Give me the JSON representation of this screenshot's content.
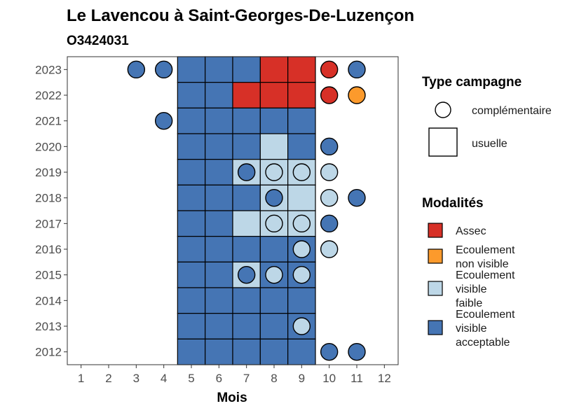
{
  "chart_data": {
    "type": "heatmap",
    "title": "Le Lavencou à Saint-Georges-De-Luzençon",
    "subtitle": "O3424031",
    "xlabel": "Mois",
    "ylabel": "",
    "x_ticks": [
      "1",
      "2",
      "3",
      "4",
      "5",
      "6",
      "7",
      "8",
      "9",
      "10",
      "11",
      "12"
    ],
    "y_ticks": [
      "2012",
      "2013",
      "2014",
      "2015",
      "2016",
      "2017",
      "2018",
      "2019",
      "2020",
      "2021",
      "2022",
      "2023"
    ],
    "xlim": [
      0.5,
      12.5
    ],
    "ylim": [
      2011.5,
      2023.5
    ],
    "grid": false,
    "legend_placement": "right",
    "legend_campaign": {
      "title": "Type campagne",
      "entries": [
        {
          "label": "complémentaire",
          "shape": "circle"
        },
        {
          "label": "usuelle",
          "shape": "square"
        }
      ]
    },
    "legend_modalities": {
      "title": "Modalités",
      "entries": [
        {
          "key": "assec",
          "lines": [
            "Assec"
          ],
          "color": "#d73027"
        },
        {
          "key": "nonvisible",
          "lines": [
            "Ecoulement",
            "non visible"
          ],
          "color": "#fc9a2c"
        },
        {
          "key": "faible",
          "lines": [
            "Ecoulement",
            "visible",
            "faible"
          ],
          "color": "#bdd7e7"
        },
        {
          "key": "acceptable",
          "lines": [
            "Ecoulement",
            "visible",
            "acceptable"
          ],
          "color": "#4575b4"
        }
      ]
    },
    "usuelle": [
      {
        "year": 2023,
        "month": 5,
        "value": "acceptable"
      },
      {
        "year": 2023,
        "month": 6,
        "value": "acceptable"
      },
      {
        "year": 2023,
        "month": 7,
        "value": "acceptable"
      },
      {
        "year": 2023,
        "month": 8,
        "value": "assec"
      },
      {
        "year": 2023,
        "month": 9,
        "value": "assec"
      },
      {
        "year": 2022,
        "month": 5,
        "value": "acceptable"
      },
      {
        "year": 2022,
        "month": 6,
        "value": "acceptable"
      },
      {
        "year": 2022,
        "month": 7,
        "value": "assec"
      },
      {
        "year": 2022,
        "month": 8,
        "value": "assec"
      },
      {
        "year": 2022,
        "month": 9,
        "value": "assec"
      },
      {
        "year": 2021,
        "month": 5,
        "value": "acceptable"
      },
      {
        "year": 2021,
        "month": 6,
        "value": "acceptable"
      },
      {
        "year": 2021,
        "month": 7,
        "value": "acceptable"
      },
      {
        "year": 2021,
        "month": 8,
        "value": "acceptable"
      },
      {
        "year": 2021,
        "month": 9,
        "value": "acceptable"
      },
      {
        "year": 2020,
        "month": 5,
        "value": "acceptable"
      },
      {
        "year": 2020,
        "month": 6,
        "value": "acceptable"
      },
      {
        "year": 2020,
        "month": 7,
        "value": "acceptable"
      },
      {
        "year": 2020,
        "month": 8,
        "value": "faible"
      },
      {
        "year": 2020,
        "month": 9,
        "value": "acceptable"
      },
      {
        "year": 2019,
        "month": 5,
        "value": "acceptable"
      },
      {
        "year": 2019,
        "month": 6,
        "value": "acceptable"
      },
      {
        "year": 2019,
        "month": 7,
        "value": "faible"
      },
      {
        "year": 2019,
        "month": 8,
        "value": "faible"
      },
      {
        "year": 2019,
        "month": 9,
        "value": "faible"
      },
      {
        "year": 2018,
        "month": 5,
        "value": "acceptable"
      },
      {
        "year": 2018,
        "month": 6,
        "value": "acceptable"
      },
      {
        "year": 2018,
        "month": 7,
        "value": "acceptable"
      },
      {
        "year": 2018,
        "month": 8,
        "value": "faible"
      },
      {
        "year": 2018,
        "month": 9,
        "value": "faible"
      },
      {
        "year": 2017,
        "month": 5,
        "value": "acceptable"
      },
      {
        "year": 2017,
        "month": 6,
        "value": "acceptable"
      },
      {
        "year": 2017,
        "month": 7,
        "value": "faible"
      },
      {
        "year": 2017,
        "month": 8,
        "value": "faible"
      },
      {
        "year": 2017,
        "month": 9,
        "value": "faible"
      },
      {
        "year": 2016,
        "month": 5,
        "value": "acceptable"
      },
      {
        "year": 2016,
        "month": 6,
        "value": "acceptable"
      },
      {
        "year": 2016,
        "month": 7,
        "value": "acceptable"
      },
      {
        "year": 2016,
        "month": 8,
        "value": "acceptable"
      },
      {
        "year": 2016,
        "month": 9,
        "value": "acceptable"
      },
      {
        "year": 2015,
        "month": 5,
        "value": "acceptable"
      },
      {
        "year": 2015,
        "month": 6,
        "value": "acceptable"
      },
      {
        "year": 2015,
        "month": 7,
        "value": "faible"
      },
      {
        "year": 2015,
        "month": 8,
        "value": "acceptable"
      },
      {
        "year": 2015,
        "month": 9,
        "value": "acceptable"
      },
      {
        "year": 2014,
        "month": 5,
        "value": "acceptable"
      },
      {
        "year": 2014,
        "month": 6,
        "value": "acceptable"
      },
      {
        "year": 2014,
        "month": 7,
        "value": "acceptable"
      },
      {
        "year": 2014,
        "month": 8,
        "value": "acceptable"
      },
      {
        "year": 2014,
        "month": 9,
        "value": "acceptable"
      },
      {
        "year": 2013,
        "month": 5,
        "value": "acceptable"
      },
      {
        "year": 2013,
        "month": 6,
        "value": "acceptable"
      },
      {
        "year": 2013,
        "month": 7,
        "value": "acceptable"
      },
      {
        "year": 2013,
        "month": 8,
        "value": "acceptable"
      },
      {
        "year": 2013,
        "month": 9,
        "value": "acceptable"
      },
      {
        "year": 2012,
        "month": 5,
        "value": "acceptable"
      },
      {
        "year": 2012,
        "month": 6,
        "value": "acceptable"
      },
      {
        "year": 2012,
        "month": 7,
        "value": "acceptable"
      },
      {
        "year": 2012,
        "month": 8,
        "value": "acceptable"
      },
      {
        "year": 2012,
        "month": 9,
        "value": "acceptable"
      }
    ],
    "complementaire": [
      {
        "year": 2023,
        "month": 3,
        "value": "acceptable"
      },
      {
        "year": 2023,
        "month": 4,
        "value": "acceptable"
      },
      {
        "year": 2023,
        "month": 10,
        "value": "assec"
      },
      {
        "year": 2023,
        "month": 11,
        "value": "acceptable"
      },
      {
        "year": 2022,
        "month": 10,
        "value": "assec"
      },
      {
        "year": 2022,
        "month": 11,
        "value": "nonvisible"
      },
      {
        "year": 2021,
        "month": 4,
        "value": "acceptable"
      },
      {
        "year": 2020,
        "month": 10,
        "value": "acceptable"
      },
      {
        "year": 2019,
        "month": 7,
        "value": "acceptable"
      },
      {
        "year": 2019,
        "month": 8,
        "value": "faible"
      },
      {
        "year": 2019,
        "month": 9,
        "value": "faible"
      },
      {
        "year": 2019,
        "month": 10,
        "value": "faible"
      },
      {
        "year": 2018,
        "month": 8,
        "value": "acceptable"
      },
      {
        "year": 2018,
        "month": 10,
        "value": "faible"
      },
      {
        "year": 2018,
        "month": 11,
        "value": "acceptable"
      },
      {
        "year": 2017,
        "month": 8,
        "value": "faible"
      },
      {
        "year": 2017,
        "month": 9,
        "value": "faible"
      },
      {
        "year": 2017,
        "month": 10,
        "value": "acceptable"
      },
      {
        "year": 2016,
        "month": 9,
        "value": "faible"
      },
      {
        "year": 2016,
        "month": 10,
        "value": "faible"
      },
      {
        "year": 2015,
        "month": 7,
        "value": "acceptable"
      },
      {
        "year": 2015,
        "month": 8,
        "value": "faible"
      },
      {
        "year": 2015,
        "month": 9,
        "value": "faible"
      },
      {
        "year": 2013,
        "month": 9,
        "value": "faible"
      },
      {
        "year": 2012,
        "month": 10,
        "value": "acceptable"
      },
      {
        "year": 2012,
        "month": 11,
        "value": "acceptable"
      }
    ]
  }
}
